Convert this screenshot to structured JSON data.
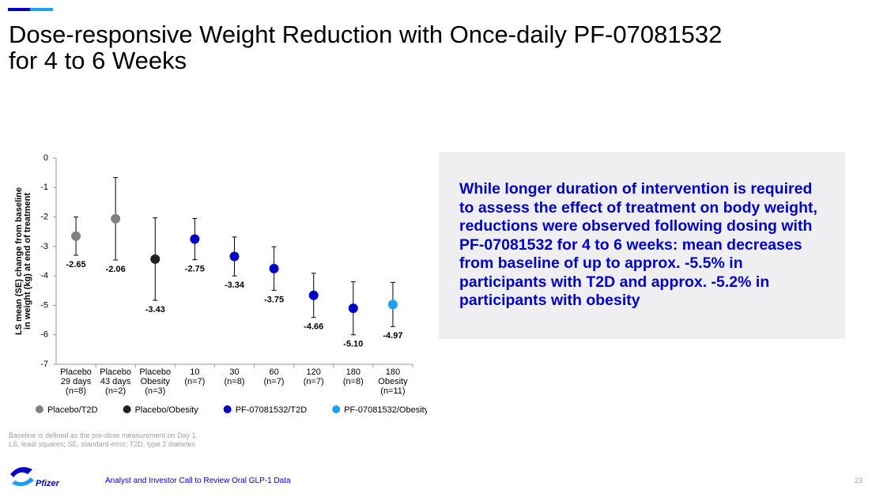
{
  "title": [
    "Dose-responsive Weight Reduction with Once-daily PF-07081532",
    "for 4 to 6 Weeks"
  ],
  "chart_data": {
    "type": "scatter",
    "y_label": [
      "LS mean (SE) change from baseline",
      "in weight (kg) at end of treatment"
    ],
    "categories": [
      "Placebo\n29 days\n(n=8)",
      "Placebo\n43 days\n(n=2)",
      "Placebo\nObesity\n(n=3)",
      "10\n(n=7)",
      "30\n(n=8)",
      "60\n(n=7)",
      "120\n(n=7)",
      "180\n(n=8)",
      "180\nObesity\n(n=11)"
    ],
    "ylim": [
      -7,
      0
    ],
    "yticks": [
      0,
      -1,
      -2,
      -3,
      -4,
      -5,
      -6,
      -7
    ],
    "series": [
      {
        "name": "Placebo/T2D",
        "color": "#808080",
        "values": [
          -2.65,
          -2.06,
          null,
          null,
          null,
          null,
          null,
          null,
          null
        ],
        "value_labels": [
          "-2.65",
          "-2.06",
          null,
          null,
          null,
          null,
          null,
          null,
          null
        ],
        "errors": [
          0.65,
          1.4,
          null,
          null,
          null,
          null,
          null,
          null,
          null
        ]
      },
      {
        "name": "Placebo/Obesity",
        "color": "#222222",
        "values": [
          null,
          null,
          -3.43,
          null,
          null,
          null,
          null,
          null,
          null
        ],
        "value_labels": [
          null,
          null,
          "-3.43",
          null,
          null,
          null,
          null,
          null,
          null
        ],
        "errors": [
          null,
          null,
          1.4,
          null,
          null,
          null,
          null,
          null,
          null
        ]
      },
      {
        "name": "PF-07081532/T2D",
        "color": "#0000c8",
        "values": [
          null,
          null,
          null,
          -2.75,
          -3.34,
          -3.75,
          -4.66,
          -5.1,
          null
        ],
        "value_labels": [
          null,
          null,
          null,
          "-2.75",
          "-3.34",
          "-3.75",
          "-4.66",
          "-5.10",
          null
        ],
        "errors": [
          null,
          null,
          null,
          0.7,
          0.66,
          0.74,
          0.75,
          0.9,
          null
        ]
      },
      {
        "name": "PF-07081532/Obesity",
        "color": "#1ea0f0",
        "values": [
          null,
          null,
          null,
          null,
          null,
          null,
          null,
          null,
          -4.97
        ],
        "value_labels": [
          null,
          null,
          null,
          null,
          null,
          null,
          null,
          null,
          "-4.97"
        ],
        "errors": [
          null,
          null,
          null,
          null,
          null,
          null,
          null,
          null,
          0.75
        ]
      }
    ]
  },
  "callout": "While longer duration of intervention is required to assess the effect of treatment on body weight, reductions were observed following dosing with PF-07081532 for 4 to 6 weeks: mean decreases from baseline of up to approx. -5.5% in participants with T2D and approx. -5.2% in participants with obesity",
  "footnotes": [
    "Baseline is defined as the pre-dose measurement on Day 1.",
    "LS, least squares; SE, standard error; T2D, type 2 diabetes"
  ],
  "footer": "Analyst and Investor Call to Review Oral GLP-1 Data",
  "logo": "Pfizer",
  "page_number": "23"
}
